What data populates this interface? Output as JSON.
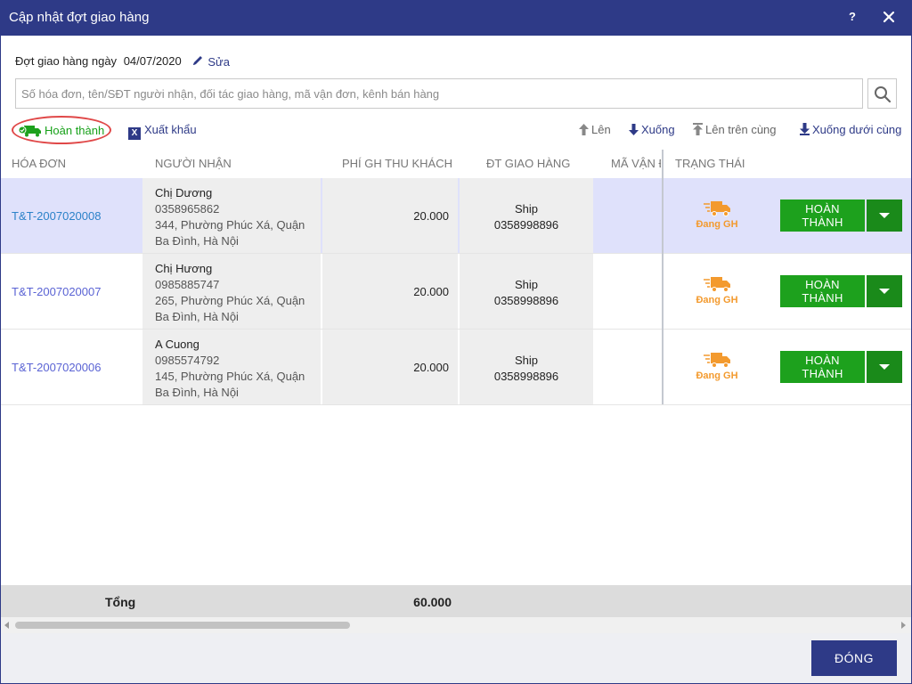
{
  "window": {
    "title": "Cập nhật đợt giao hàng",
    "help": "?",
    "close_icon": "close-icon",
    "colors": {
      "titlebar": "#2e3a87",
      "accent_green": "#1da11d",
      "status_orange": "#f39a2e",
      "link": "#5a63d4"
    }
  },
  "batch": {
    "label": "Đợt giao hàng ngày",
    "date": "04/07/2020",
    "edit": "Sửa"
  },
  "search": {
    "placeholder": "Số hóa đơn, tên/SĐT người nhận, đối tác giao hàng, mã vận đơn, kênh bán hàng",
    "value": ""
  },
  "toolbar": {
    "complete": "Hoàn thành",
    "export": "Xuất khẩu",
    "up": "Lên",
    "down": "Xuống",
    "top": "Lên trên cùng",
    "bottom": "Xuống dưới cùng"
  },
  "table": {
    "headers": [
      "HÓA ĐƠN",
      "NGƯỜI NHẬN",
      "PHÍ GH THU KHÁCH",
      "ĐT GIAO HÀNG",
      "MÃ VẬN Đ",
      "TRẠNG THÁI"
    ],
    "rows": [
      {
        "invoice": "T&T-2007020008",
        "name": "Chị Dương",
        "phone": "0358965862",
        "addr1": "344, Phường Phúc Xá, Quận",
        "addr2": "Ba Đình, Hà Nội",
        "fee": "20.000",
        "partner": "Ship",
        "partner_phone": "0358998896",
        "status": "Đang GH",
        "action": "HOÀN THÀNH",
        "selected": true
      },
      {
        "invoice": "T&T-2007020007",
        "name": "Chị Hương",
        "phone": "0985885747",
        "addr1": "265, Phường Phúc Xá, Quận",
        "addr2": "Ba Đình, Hà Nội",
        "fee": "20.000",
        "partner": "Ship",
        "partner_phone": "0358998896",
        "status": "Đang GH",
        "action": "HOÀN THÀNH",
        "selected": false
      },
      {
        "invoice": "T&T-2007020006",
        "name": "A Cuong",
        "phone": "0985574792",
        "addr1": "145, Phường Phúc Xá, Quận",
        "addr2": "Ba Đình, Hà Nội",
        "fee": "20.000",
        "partner": "Ship",
        "partner_phone": "0358998896",
        "status": "Đang GH",
        "action": "HOÀN THÀNH",
        "selected": false
      }
    ]
  },
  "totals": {
    "label": "Tổng",
    "fee": "60.000"
  },
  "footer": {
    "close": "ĐÓNG"
  }
}
